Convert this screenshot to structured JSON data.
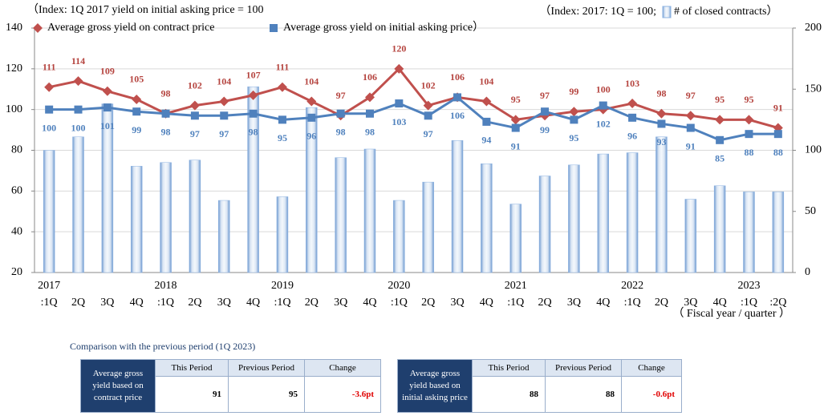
{
  "chart_data": {
    "type": "combo",
    "index_note": "（Index: 1Q 2017 yield on initial asking price = 100",
    "right_note": "（Index: 2017: 1Q = 100;",
    "xlabel": "（ Fiscal year / quarter ）",
    "categories": [
      ":1Q",
      "2Q",
      "3Q",
      "4Q",
      ":1Q",
      "2Q",
      "3Q",
      "4Q",
      ":1Q",
      "2Q",
      "3Q",
      "4Q",
      ":1Q",
      "2Q",
      "3Q",
      "4Q",
      ":1Q",
      "2Q",
      "3Q",
      "4Q",
      ":1Q",
      "2Q",
      "3Q",
      "4Q",
      ":1Q",
      ":2Q"
    ],
    "year_labels": [
      "2017",
      null,
      null,
      null,
      "2018",
      null,
      null,
      null,
      "2019",
      null,
      null,
      null,
      "2020",
      null,
      null,
      null,
      "2021",
      null,
      null,
      null,
      "2022",
      null,
      null,
      null,
      "2023",
      null
    ],
    "series": [
      {
        "name": "# of closed contracts）",
        "type": "bar",
        "axis": "y2",
        "color": "#8db3e2",
        "values": [
          100,
          111,
          138,
          87,
          90,
          92,
          59,
          152,
          62,
          135,
          94,
          101,
          59,
          74,
          108,
          89,
          56,
          79,
          88,
          97,
          98,
          111,
          60,
          71,
          66,
          66
        ]
      },
      {
        "name": "Average gross yield on contract price",
        "type": "line",
        "marker": "diamond",
        "color": "#c0504d",
        "values": [
          111,
          114,
          109,
          105,
          98,
          102,
          104,
          107,
          111,
          104,
          97,
          106,
          120,
          102,
          106,
          104,
          95,
          97,
          99,
          100,
          103,
          98,
          97,
          95,
          95,
          91
        ]
      },
      {
        "name": "Average gross yield on initial asking price）",
        "type": "line",
        "marker": "square",
        "color": "#4f81bd",
        "values": [
          100,
          100,
          101,
          99,
          98,
          97,
          97,
          98,
          95,
          96,
          98,
          98,
          103,
          97,
          106,
          94,
          91,
          99,
          95,
          102,
          96,
          93,
          91,
          85,
          88,
          88
        ]
      }
    ],
    "ylim": [
      20,
      140
    ],
    "yticks": [
      20,
      40,
      60,
      80,
      100,
      120,
      140
    ],
    "y2lim": [
      0,
      200
    ],
    "y2ticks": [
      0,
      50,
      100,
      150,
      200
    ],
    "grid": true
  },
  "comparison": {
    "caption": "Comparison with the previous period (1Q 2023)",
    "tables": [
      {
        "row_header": "Average gross yield based on contract price",
        "columns": [
          "This Period",
          "Previous Period",
          "Change"
        ],
        "cells": [
          "91",
          "95",
          "-3.6pt"
        ]
      },
      {
        "row_header": "Average gross yield based on initial asking price",
        "columns": [
          "This Period",
          "Previous Period",
          "Change"
        ],
        "cells": [
          "88",
          "88",
          "-0.6pt"
        ]
      }
    ]
  }
}
